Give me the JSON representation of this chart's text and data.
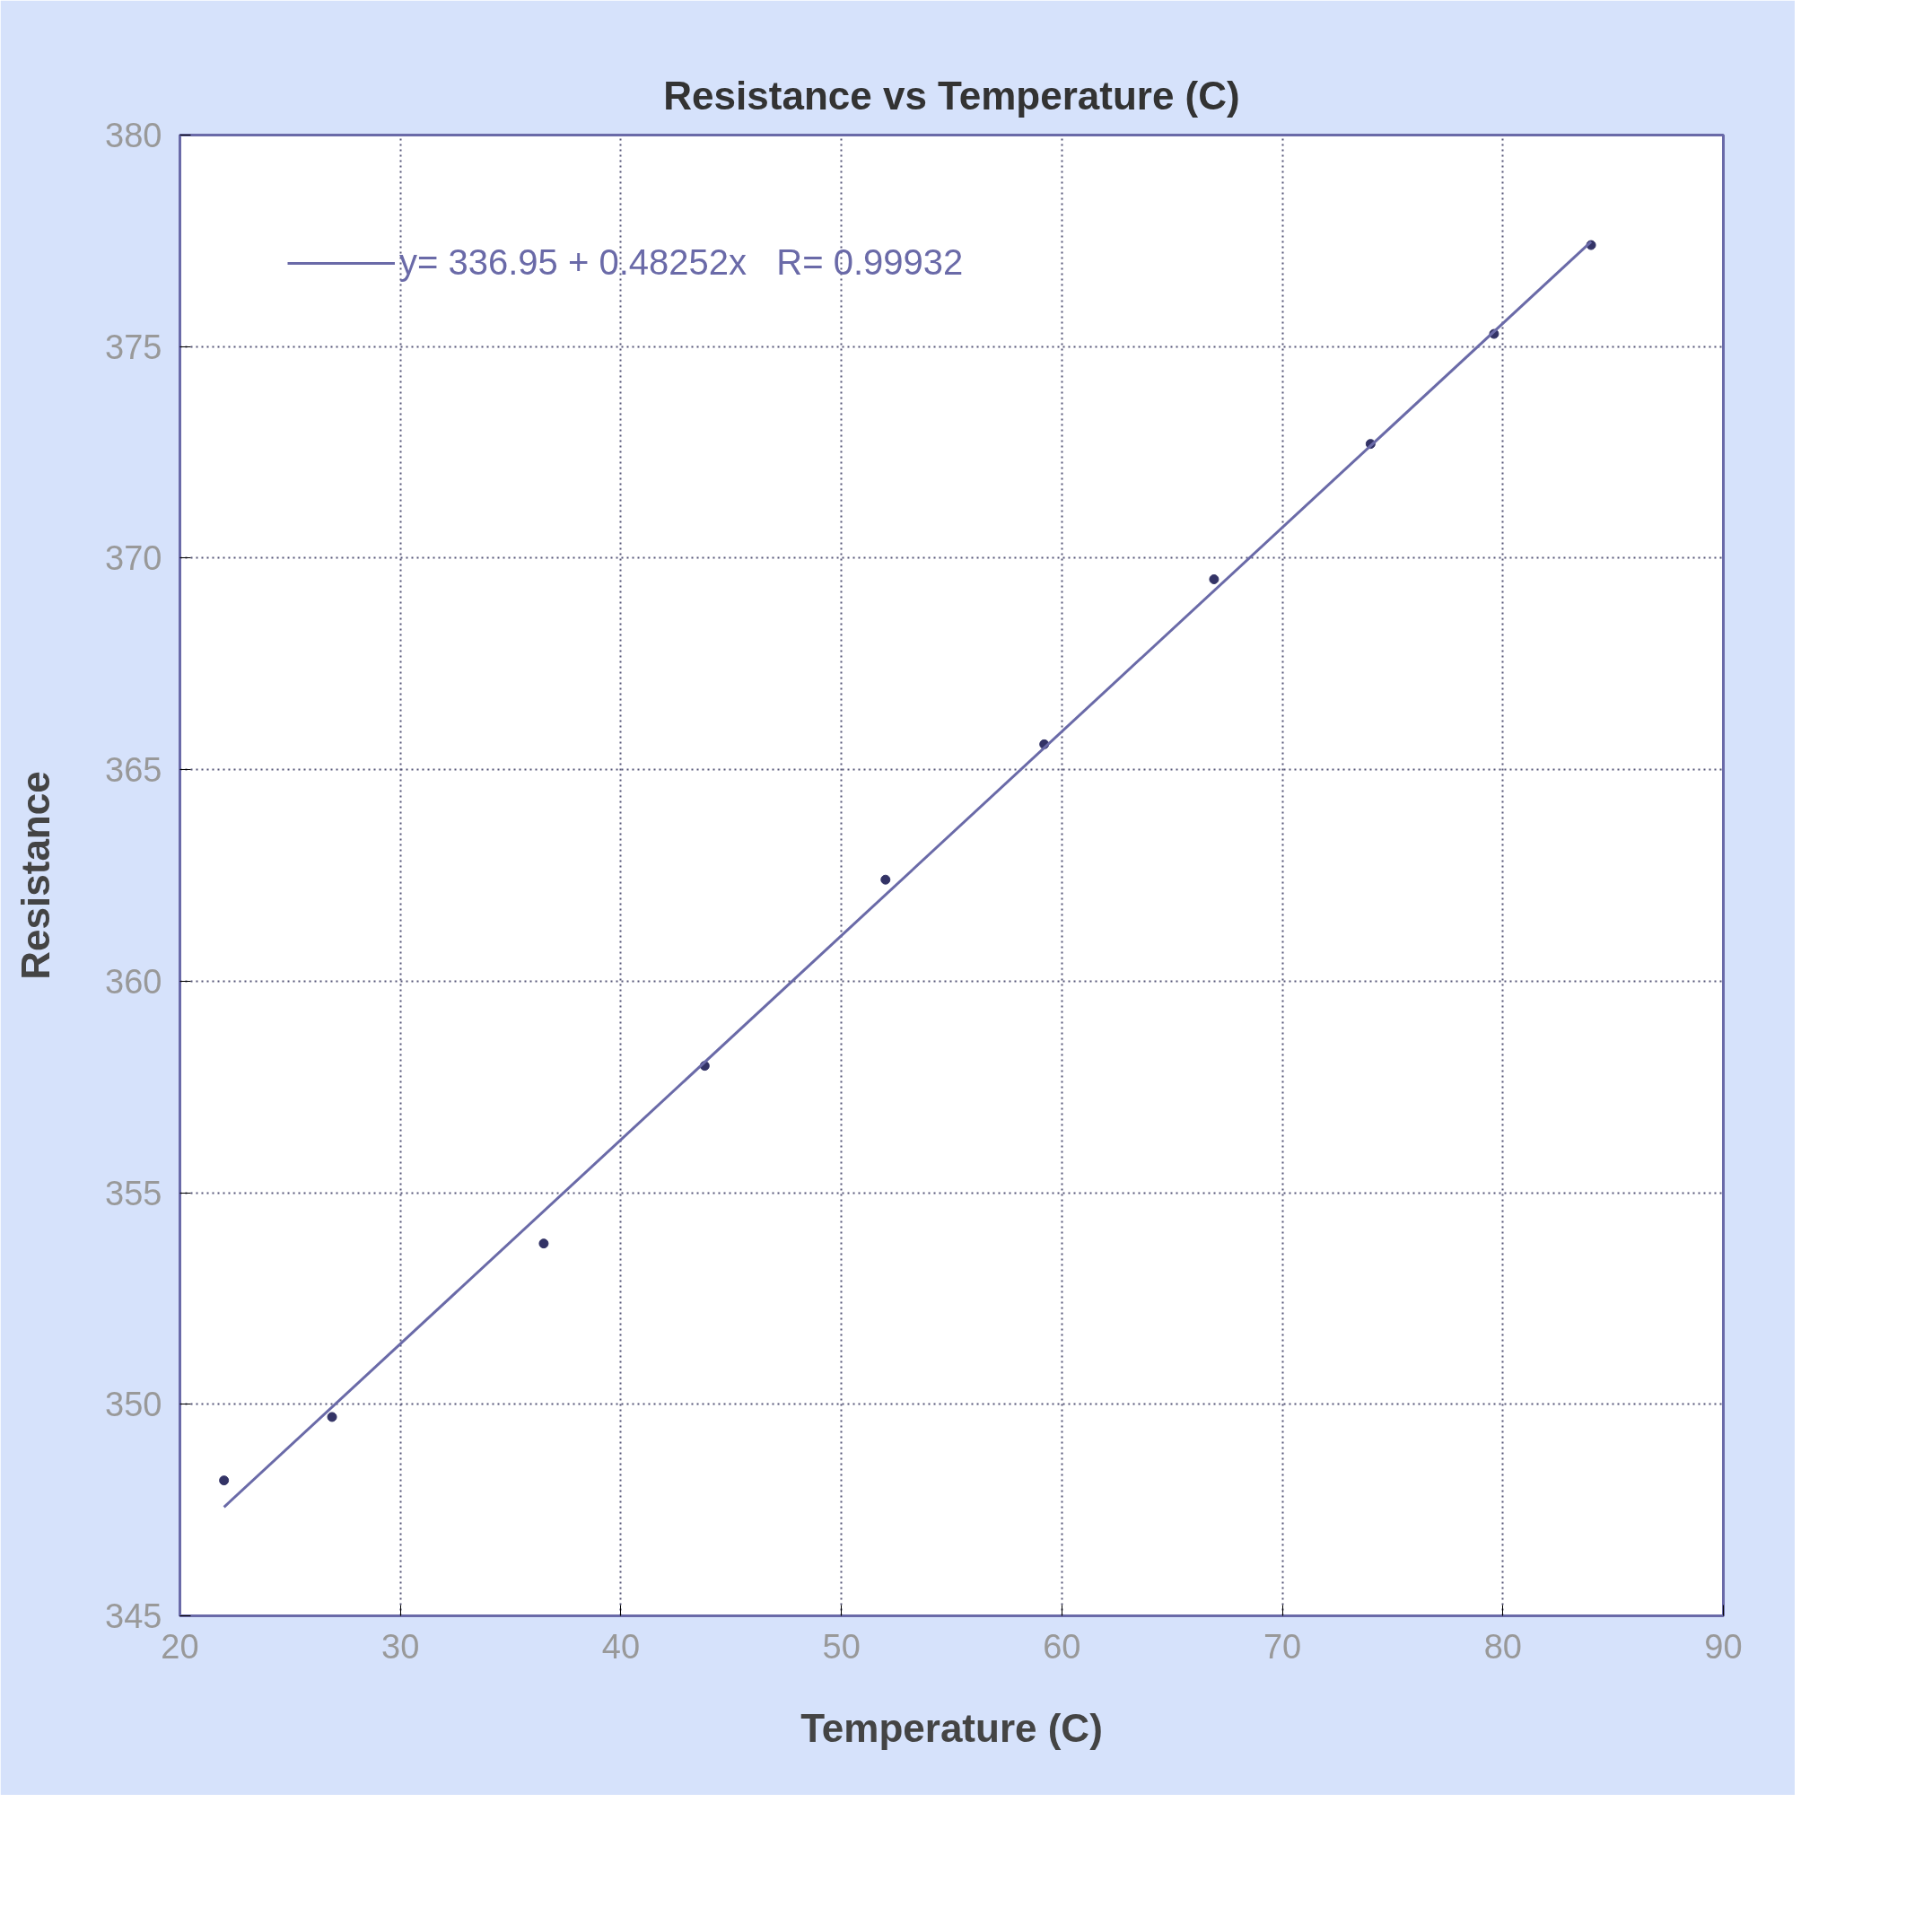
{
  "chart_data": {
    "type": "scatter",
    "title": "Resistance vs Temperature (C)",
    "xlabel": "Temperature (C)",
    "ylabel": "Resistance",
    "xlim": [
      20,
      90
    ],
    "xticks": [
      20,
      30,
      40,
      50,
      60,
      70,
      80,
      90
    ],
    "ylim": [
      345,
      380
    ],
    "yticks": [
      345,
      350,
      355,
      360,
      365,
      370,
      375,
      380
    ],
    "grid": true,
    "legend": "top left",
    "series": [
      {
        "marker": "circle",
        "color": "#333366",
        "x": [
          22.0,
          26.9,
          36.5,
          43.8,
          52.0,
          59.2,
          66.9,
          74.0,
          79.6,
          84.0
        ],
        "values": [
          348.2,
          349.7,
          353.8,
          358.0,
          362.4,
          365.6,
          369.5,
          372.7,
          375.3,
          377.4
        ]
      },
      {
        "type": "line",
        "name": "y= 336.95 + 0.48252x   R= 0.99932",
        "color": "#6a6aa8",
        "x": [
          22,
          84
        ],
        "values": [
          347.57,
          377.48
        ]
      }
    ]
  }
}
